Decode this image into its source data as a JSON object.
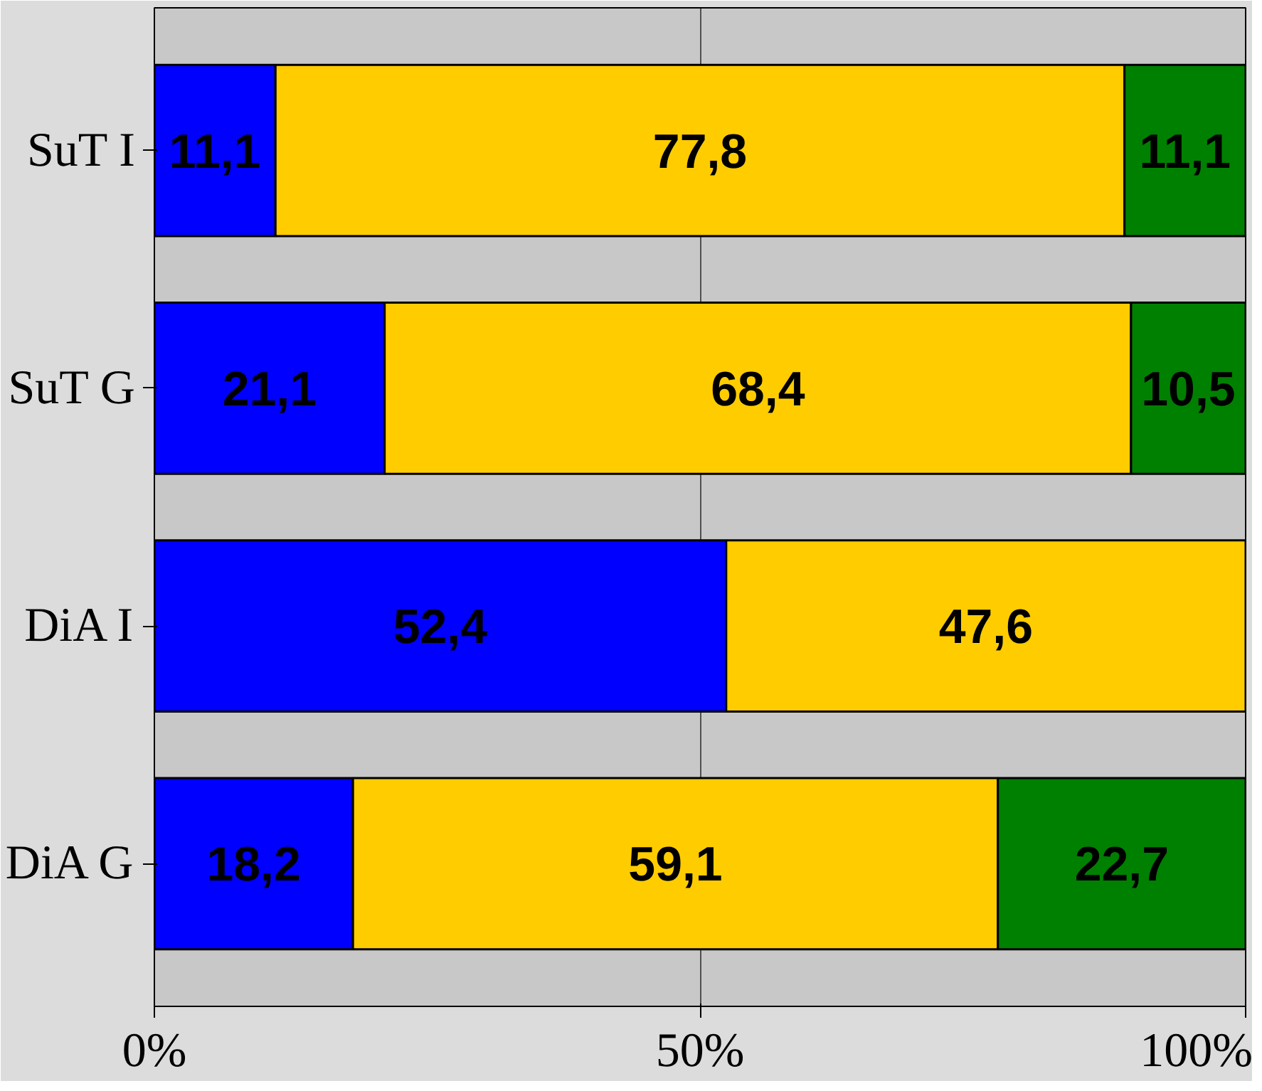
{
  "chart_data": {
    "type": "bar",
    "orientation": "horizontal",
    "stacked": true,
    "categories": [
      "SuT I",
      "SuT G",
      "DiA I",
      "DiA G"
    ],
    "series": [
      {
        "color": "#0000ff",
        "values": [
          11.1,
          21.1,
          52.4,
          18.2
        ],
        "value_labels": [
          "11,1",
          "21,1",
          "52,4",
          "18,2"
        ]
      },
      {
        "color": "#ffcc00",
        "values": [
          77.8,
          68.4,
          47.6,
          59.1
        ],
        "value_labels": [
          "77,8",
          "68,4",
          "47,6",
          "59,1"
        ]
      },
      {
        "color": "#008000",
        "values": [
          11.1,
          10.5,
          null,
          22.7
        ],
        "value_labels": [
          "11,1",
          "10,5",
          null,
          "22,7"
        ]
      }
    ],
    "xlim": [
      0,
      100
    ],
    "xticks": [
      {
        "value": 0,
        "label": "0%"
      },
      {
        "value": 50,
        "label": "50%"
      },
      {
        "value": 100,
        "label": "100%"
      }
    ],
    "grid": "x"
  }
}
